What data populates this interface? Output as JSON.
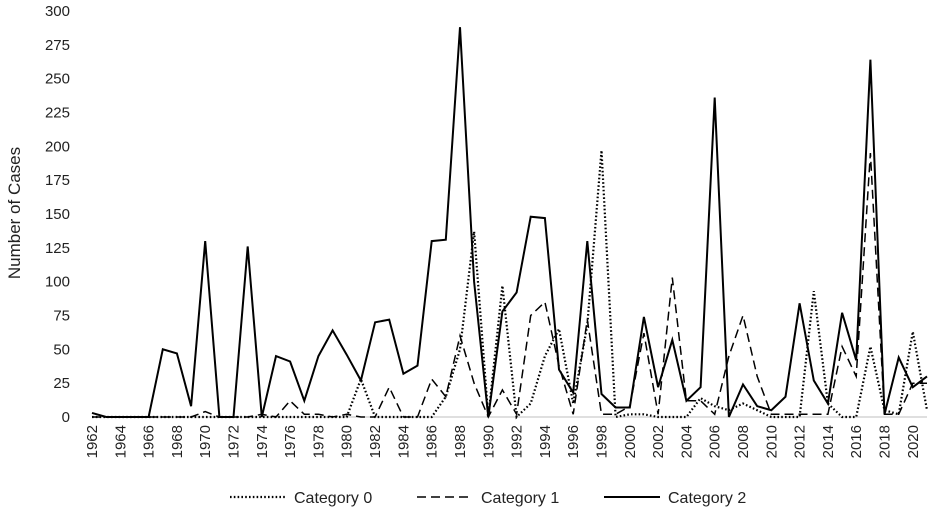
{
  "chart_data": {
    "type": "line",
    "title": "",
    "xlabel": "",
    "ylabel": "Number of Cases",
    "ylim": [
      0,
      300
    ],
    "yticks": [
      0,
      25,
      50,
      75,
      100,
      125,
      150,
      175,
      200,
      225,
      250,
      275,
      300
    ],
    "grid": false,
    "legend_position": "bottom",
    "x": [
      1962,
      1963,
      1964,
      1965,
      1966,
      1967,
      1968,
      1969,
      1970,
      1971,
      1972,
      1973,
      1974,
      1975,
      1976,
      1977,
      1978,
      1979,
      1980,
      1981,
      1982,
      1983,
      1984,
      1985,
      1986,
      1987,
      1988,
      1989,
      1990,
      1991,
      1992,
      1993,
      1994,
      1995,
      1996,
      1997,
      1998,
      1999,
      2000,
      2001,
      2002,
      2003,
      2004,
      2005,
      2006,
      2007,
      2008,
      2009,
      2010,
      2011,
      2012,
      2013,
      2014,
      2015,
      2016,
      2017,
      2018,
      2019,
      2020,
      2021
    ],
    "xtick_labels": [
      "1962",
      "1964",
      "1966",
      "1968",
      "1970",
      "1972",
      "1974",
      "1976",
      "1978",
      "1980",
      "1982",
      "1984",
      "1986",
      "1988",
      "1990",
      "1992",
      "1994",
      "1996",
      "1998",
      "2000",
      "2002",
      "2004",
      "2006",
      "2008",
      "2010",
      "2012",
      "2014",
      "2016",
      "2018",
      "2020"
    ],
    "series": [
      {
        "name": "Category 0",
        "dash": "dotted",
        "values": [
          0,
          0,
          0,
          0,
          0,
          0,
          0,
          0,
          0,
          0,
          0,
          0,
          0,
          0,
          0,
          0,
          0,
          0,
          0,
          28,
          0,
          0,
          0,
          0,
          0,
          15,
          50,
          137,
          0,
          97,
          0,
          10,
          45,
          65,
          10,
          68,
          197,
          0,
          2,
          2,
          0,
          0,
          0,
          14,
          8,
          5,
          10,
          5,
          0,
          0,
          0,
          93,
          10,
          0,
          0,
          52,
          5,
          2,
          63,
          5
        ]
      },
      {
        "name": "Category 1",
        "dash": "dashed",
        "values": [
          0,
          0,
          0,
          0,
          0,
          0,
          0,
          0,
          4,
          0,
          0,
          0,
          2,
          0,
          12,
          2,
          2,
          0,
          2,
          0,
          0,
          22,
          0,
          0,
          28,
          15,
          60,
          25,
          0,
          20,
          2,
          75,
          85,
          38,
          2,
          72,
          2,
          2,
          8,
          62,
          2,
          103,
          12,
          12,
          2,
          45,
          75,
          30,
          2,
          2,
          2,
          2,
          2,
          52,
          30,
          195,
          2,
          2,
          25,
          25
        ]
      },
      {
        "name": "Category 2",
        "dash": "solid",
        "values": [
          3,
          0,
          0,
          0,
          0,
          50,
          47,
          8,
          130,
          0,
          0,
          126,
          0,
          45,
          41,
          12,
          45,
          64,
          46,
          27,
          70,
          72,
          32,
          38,
          130,
          131,
          288,
          100,
          0,
          78,
          92,
          148,
          147,
          35,
          18,
          130,
          17,
          7,
          7,
          74,
          22,
          57,
          12,
          22,
          236,
          0,
          24,
          8,
          5,
          15,
          84,
          27,
          10,
          77,
          42,
          264,
          2,
          44,
          22,
          30
        ]
      }
    ]
  },
  "colors": {
    "line": "#000000",
    "axis": "#bfbfbf",
    "text": "#222222"
  }
}
